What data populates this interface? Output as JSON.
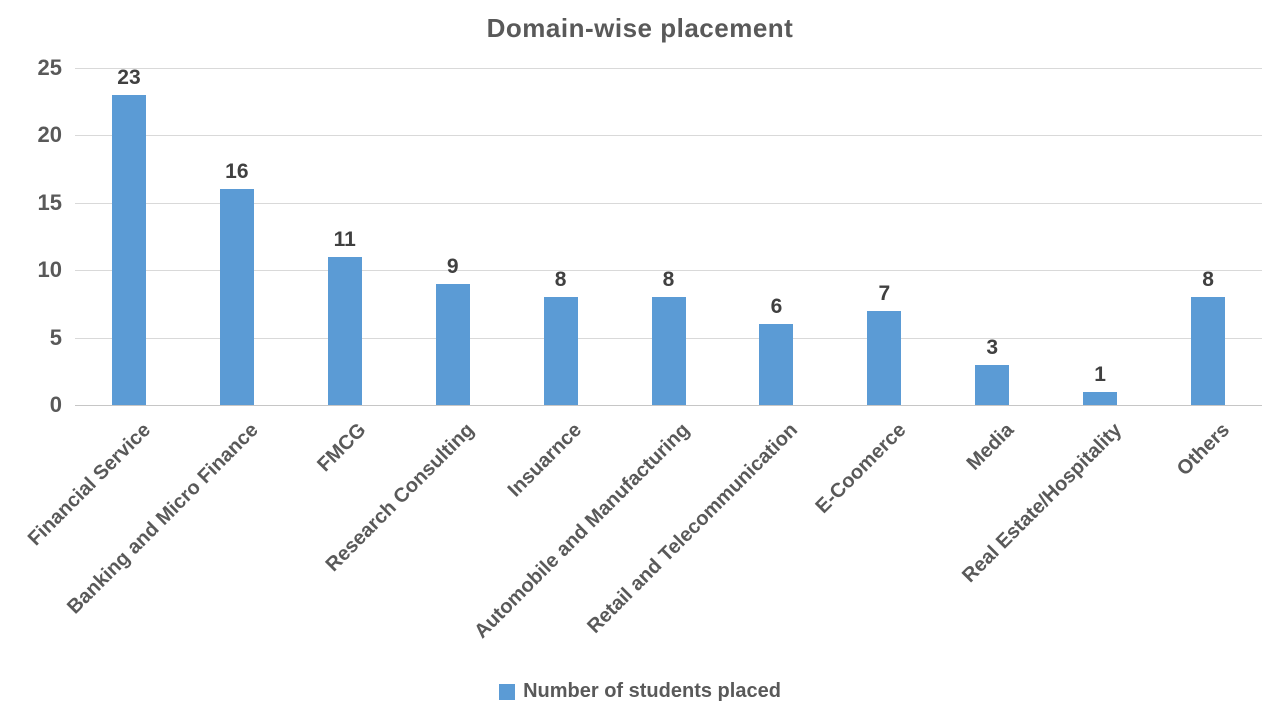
{
  "chart_data": {
    "type": "bar",
    "title": "Domain-wise placement",
    "categories": [
      "Financial Service",
      "Banking and Micro Finance",
      "FMCG",
      "Research Consulting",
      "Insuarnce",
      "Automobile and Manufacturing",
      "Retail and Telecommunication",
      "E-Coomerce",
      "Media",
      "Real Estate/Hospitality",
      "Others"
    ],
    "values": [
      23,
      16,
      11,
      9,
      8,
      8,
      6,
      7,
      3,
      1,
      8
    ],
    "series": [
      {
        "name": "Number of students placed",
        "values": [
          23,
          16,
          11,
          9,
          8,
          8,
          6,
          7,
          3,
          1,
          8
        ]
      }
    ],
    "xlabel": "",
    "ylabel": "",
    "ylim": [
      0,
      25
    ],
    "yticks": [
      0,
      5,
      10,
      15,
      20,
      25
    ],
    "grid": true,
    "legend_position": "bottom",
    "colors": {
      "bar": "#5B9BD5",
      "gridline": "#D9D9D9",
      "axis_text": "#595959",
      "data_label": "#404040",
      "background": "#FFFFFF"
    }
  },
  "legend": {
    "label": "Number of students placed"
  }
}
